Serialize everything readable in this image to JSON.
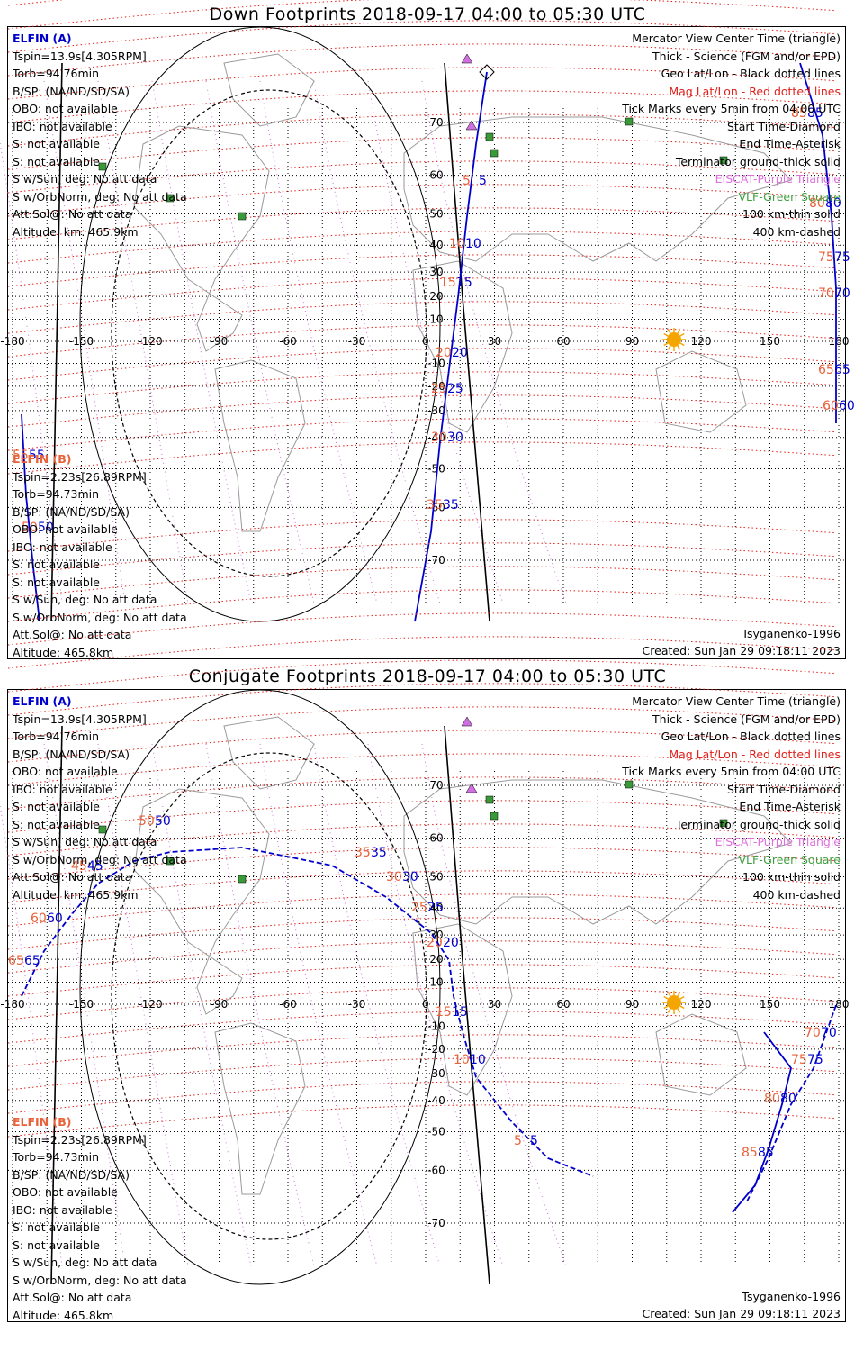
{
  "panels": [
    {
      "title": "Down Footprints 2018-09-17 04:00 to 05:30 UTC",
      "left_a": [
        "Tspin=13.9s[4.305RPM]",
        "Torb=94.76min",
        "B/SP: (NA/ND/SD/SA)",
        "OBO: not available",
        "IBO: not available",
        "S: not available",
        "S: not available",
        "S w/Sun, deg: No att data",
        "S w/OrbNorm, deg: No att data",
        "Att.Sol@: No att data",
        "Altitude, km: 465.9km"
      ],
      "left_b": [
        "Tspin=2.23s[26.89RPM]",
        "Torb=94.73min",
        "B/SP: (NA/ND/SD/SA)",
        "OBO: not available",
        "IBO: not available",
        "S: not available",
        "S: not available",
        "S w/Sun, deg: No att data",
        "S w/OrbNorm, deg: No att data",
        "Att.Sol@: No att data",
        "Altitude: 465.8km"
      ]
    },
    {
      "title": "Conjugate Footprints 2018-09-17 04:00 to 05:30 UTC",
      "left_a": [
        "Tspin=13.9s[4.305RPM]",
        "Torb=94.76min",
        "B/SP: (NA/ND/SD/SA)",
        "OBO: not available",
        "IBO: not available",
        "S: not available",
        "S: not available",
        "S w/Sun, deg: No att data",
        "S w/OrbNorm, deg: No att data",
        "Att.Sol@: No att data",
        "Altitude, km: 465.9km"
      ],
      "left_b": [
        "Tspin=2.23s[26.89RPM]",
        "Torb=94.73min",
        "B/SP: (NA/ND/SD/SA)",
        "OBO: not available",
        "IBO: not available",
        "S: not available",
        "S: not available",
        "S w/Sun, deg: No att data",
        "S w/OrbNorm, deg: No att data",
        "Att.Sol@: No att data",
        "Altitude: 465.8km"
      ]
    }
  ],
  "probe_a_label": "ELFIN (A)",
  "probe_b_label": "ELFIN (B)",
  "legend": [
    "Mercator View Center Time (triangle)",
    "Thick - Science (FGM and/or EPD)",
    "Geo Lat/Lon - Black dotted lines",
    "Mag Lat/Lon - Red dotted lines",
    "Tick Marks every 5min from 04:00 UTC",
    "Start Time-Diamond",
    "End Time-Asterisk",
    "Terminator ground-thick solid",
    "EISCAT-Purple Triangle",
    "VLF-Green Square",
    "100 km-thin solid",
    "400 km-dashed"
  ],
  "legend_colors": [
    "#000000",
    "#000000",
    "#000000",
    "#e0201a",
    "#000000",
    "#000000",
    "#000000",
    "#000000",
    "#e070e0",
    "#40a040",
    "#000000",
    "#000000"
  ],
  "model": "Tsyganenko-1996",
  "created": "Created: Sun Jan 29 09:18:11 2023",
  "lon_labels": [
    "-180",
    "-150",
    "-120",
    "-90",
    "-60",
    "-30",
    "0",
    "30",
    "60",
    "90",
    "120",
    "150",
    "180"
  ],
  "lat_labels": [
    "70",
    "60",
    "50",
    "40",
    "30",
    "20",
    "10",
    "-10",
    "-20",
    "-30",
    "-40",
    "-50",
    "-60",
    "-70"
  ],
  "colors": {
    "probe_a": "#0000cc",
    "probe_b": "#e8623a",
    "mag_grid": "#e0201a",
    "geo_grid": "#000000",
    "sun": "#f5a500",
    "vlf": "#3a9a3a",
    "eiscat": "#d070e0"
  },
  "down_ticks_a": [
    "85",
    "80",
    "75",
    "70",
    "65",
    "60",
    "55",
    "50",
    "5",
    "10",
    "15",
    "20",
    "25",
    "30",
    "35"
  ],
  "down_ticks_b": [
    "85",
    "80",
    "75",
    "70",
    "65",
    "60",
    "55",
    "50",
    "5",
    "10",
    "15",
    "20",
    "25",
    "30",
    "35"
  ],
  "conj_ticks_a": [
    "50",
    "45",
    "60",
    "65",
    "35",
    "30",
    "25",
    "20",
    "15",
    "10",
    "5",
    "70",
    "75",
    "80",
    "85"
  ],
  "conj_ticks_b": [
    "50",
    "45",
    "60",
    "65",
    "35",
    "30",
    "25",
    "20",
    "15",
    "10",
    "5",
    "70",
    "75",
    "80",
    "85"
  ]
}
